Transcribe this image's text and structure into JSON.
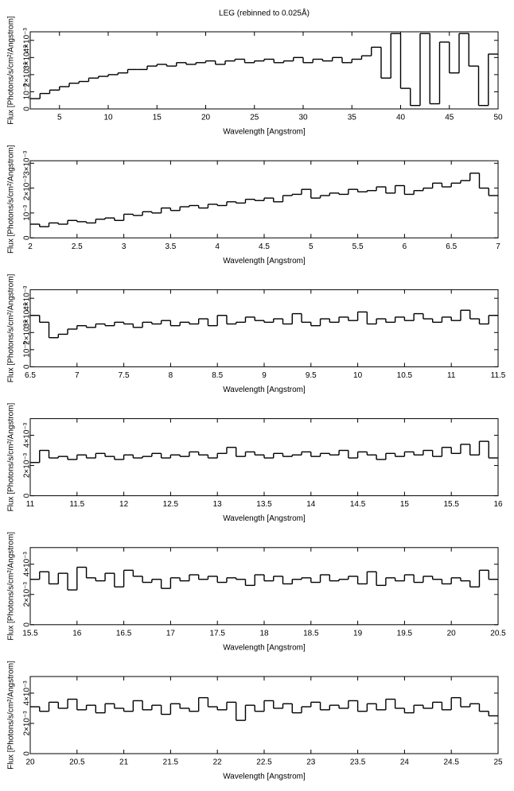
{
  "chart_data": [
    {
      "type": "line",
      "step": true,
      "color": "#000000",
      "title": "LEG (rebinned to 0.025Å)",
      "x_label": "Wavelength [Angstrom]",
      "y_label": "Flux [Photons/s/cm²/Angstrom]",
      "xlim": [
        2,
        50
      ],
      "xticks": [
        5,
        10,
        15,
        20,
        25,
        30,
        35,
        40,
        45,
        50
      ],
      "ylim": [
        0,
        0.0045
      ],
      "yticks": [
        0,
        {
          "value": 0.001,
          "label": "10⁻³"
        },
        {
          "value": 0.002,
          "label": "2×10⁻³"
        },
        {
          "value": 0.003,
          "label": "3×10⁻³"
        },
        {
          "value": 0.004,
          "label": "4×10⁻³"
        }
      ],
      "x": [
        2.5,
        3.5,
        4.5,
        5.5,
        6.5,
        7.5,
        8.5,
        9.5,
        10.5,
        11.5,
        12.5,
        13.5,
        14.5,
        15.5,
        16.5,
        17.5,
        18.5,
        19.5,
        20.5,
        21.5,
        22.5,
        23.5,
        24.5,
        25.5,
        26.5,
        27.5,
        28.5,
        29.5,
        30.5,
        31.5,
        32.5,
        33.5,
        34.5,
        35.5,
        36.5,
        37.5,
        38.5,
        39.5,
        40.5,
        41.5,
        42.5,
        43.5,
        44.5,
        45.5,
        46.5,
        47.5,
        48.5,
        49.5
      ],
      "values": [
        0.0006,
        0.0009,
        0.0011,
        0.0013,
        0.0015,
        0.0016,
        0.0018,
        0.0019,
        0.002,
        0.0021,
        0.0023,
        0.0023,
        0.0025,
        0.0026,
        0.0025,
        0.0027,
        0.0026,
        0.0027,
        0.0028,
        0.0026,
        0.0028,
        0.0029,
        0.0027,
        0.0028,
        0.0029,
        0.0027,
        0.0028,
        0.003,
        0.0027,
        0.0029,
        0.0028,
        0.003,
        0.0027,
        0.0029,
        0.0031,
        0.0036,
        0.0018,
        0.0044,
        0.0012,
        0.0002,
        0.0044,
        0.0003,
        0.0039,
        0.0021,
        0.0044,
        0.0025,
        0.0002,
        0.0032
      ]
    },
    {
      "type": "line",
      "step": true,
      "color": "#000000",
      "x_label": "Wavelength [Angstrom]",
      "y_label": "Flux [Photons/s/cm²/Angstrom]",
      "xlim": [
        2,
        7
      ],
      "xticks": [
        2,
        2.5,
        3,
        3.5,
        4,
        4.5,
        5,
        5.5,
        6,
        6.5,
        7
      ],
      "ylim": [
        0,
        0.0031
      ],
      "yticks": [
        0,
        {
          "value": 0.001,
          "label": "10⁻³"
        },
        {
          "value": 0.002,
          "label": "2×10⁻³"
        },
        {
          "value": 0.003,
          "label": "3×10⁻³"
        }
      ],
      "x": [
        2.05,
        2.15,
        2.25,
        2.35,
        2.45,
        2.55,
        2.65,
        2.75,
        2.85,
        2.95,
        3.05,
        3.15,
        3.25,
        3.35,
        3.45,
        3.55,
        3.65,
        3.75,
        3.85,
        3.95,
        4.05,
        4.15,
        4.25,
        4.35,
        4.45,
        4.55,
        4.65,
        4.75,
        4.85,
        4.95,
        5.05,
        5.15,
        5.25,
        5.35,
        5.45,
        5.55,
        5.65,
        5.75,
        5.85,
        5.95,
        6.05,
        6.15,
        6.25,
        6.35,
        6.45,
        6.55,
        6.65,
        6.75,
        6.85,
        6.95
      ],
      "values": [
        0.00055,
        0.00045,
        0.0006,
        0.00055,
        0.0007,
        0.00065,
        0.0006,
        0.00075,
        0.0008,
        0.0007,
        0.00095,
        0.0009,
        0.00105,
        0.001,
        0.0012,
        0.0011,
        0.00125,
        0.0013,
        0.0012,
        0.00135,
        0.0013,
        0.00145,
        0.0014,
        0.00155,
        0.0015,
        0.0016,
        0.00145,
        0.0017,
        0.00175,
        0.00195,
        0.0016,
        0.0017,
        0.0018,
        0.00175,
        0.00195,
        0.00185,
        0.0019,
        0.00205,
        0.0018,
        0.0021,
        0.00175,
        0.0019,
        0.002,
        0.0022,
        0.00205,
        0.0022,
        0.0023,
        0.0026,
        0.002,
        0.0017
      ]
    },
    {
      "type": "line",
      "step": true,
      "color": "#000000",
      "x_label": "Wavelength [Angstrom]",
      "y_label": "Flux [Photons/s/cm²/Angstrom]",
      "xlim": [
        6.5,
        11.5
      ],
      "xticks": [
        6.5,
        7,
        7.5,
        8,
        8.5,
        9,
        9.5,
        10,
        10.5,
        11,
        11.5
      ],
      "ylim": [
        0,
        0.0045
      ],
      "yticks": [
        0,
        {
          "value": 0.001,
          "label": "10⁻³"
        },
        {
          "value": 0.002,
          "label": "2×10⁻³"
        },
        {
          "value": 0.003,
          "label": "3×10⁻³"
        },
        {
          "value": 0.004,
          "label": "4×10⁻³"
        }
      ],
      "x": [
        6.55,
        6.65,
        6.75,
        6.85,
        6.95,
        7.05,
        7.15,
        7.25,
        7.35,
        7.45,
        7.55,
        7.65,
        7.75,
        7.85,
        7.95,
        8.05,
        8.15,
        8.25,
        8.35,
        8.45,
        8.55,
        8.65,
        8.75,
        8.85,
        8.95,
        9.05,
        9.15,
        9.25,
        9.35,
        9.45,
        9.55,
        9.65,
        9.75,
        9.85,
        9.95,
        10.05,
        10.15,
        10.25,
        10.35,
        10.45,
        10.55,
        10.65,
        10.75,
        10.85,
        10.95,
        11.05,
        11.15,
        11.25,
        11.35,
        11.45
      ],
      "values": [
        0.003,
        0.0026,
        0.0017,
        0.0019,
        0.0022,
        0.0024,
        0.0023,
        0.0025,
        0.0024,
        0.0026,
        0.0025,
        0.0023,
        0.0026,
        0.0025,
        0.0027,
        0.0024,
        0.0026,
        0.0025,
        0.0028,
        0.0024,
        0.003,
        0.0025,
        0.0026,
        0.0029,
        0.0027,
        0.0026,
        0.0028,
        0.0025,
        0.0031,
        0.0026,
        0.0024,
        0.0028,
        0.0026,
        0.0029,
        0.0027,
        0.0032,
        0.0025,
        0.0028,
        0.0026,
        0.0029,
        0.0027,
        0.0031,
        0.0028,
        0.0026,
        0.0029,
        0.0027,
        0.0033,
        0.0028,
        0.0025,
        0.003
      ]
    },
    {
      "type": "line",
      "step": true,
      "color": "#000000",
      "x_label": "Wavelength [Angstrom]",
      "y_label": "Flux [Photons/s/cm²/Angstrom]",
      "xlim": [
        11,
        16
      ],
      "xticks": [
        11,
        11.5,
        12,
        12.5,
        13,
        13.5,
        14,
        14.5,
        15,
        15.5,
        16
      ],
      "ylim": [
        0,
        0.0051
      ],
      "yticks": [
        0,
        {
          "value": 0.002,
          "label": "2×10⁻³"
        },
        {
          "value": 0.004,
          "label": "4×10⁻³"
        }
      ],
      "x": [
        11.05,
        11.15,
        11.25,
        11.35,
        11.45,
        11.55,
        11.65,
        11.75,
        11.85,
        11.95,
        12.05,
        12.15,
        12.25,
        12.35,
        12.45,
        12.55,
        12.65,
        12.75,
        12.85,
        12.95,
        13.05,
        13.15,
        13.25,
        13.35,
        13.45,
        13.55,
        13.65,
        13.75,
        13.85,
        13.95,
        14.05,
        14.15,
        14.25,
        14.35,
        14.45,
        14.55,
        14.65,
        14.75,
        14.85,
        14.95,
        15.05,
        15.15,
        15.25,
        15.35,
        15.45,
        15.55,
        15.65,
        15.75,
        15.85,
        15.95
      ],
      "values": [
        0.0022,
        0.003,
        0.0025,
        0.0026,
        0.0024,
        0.0027,
        0.0025,
        0.0028,
        0.0026,
        0.0024,
        0.0027,
        0.0025,
        0.0026,
        0.0028,
        0.0025,
        0.0027,
        0.0026,
        0.0029,
        0.0027,
        0.0025,
        0.0028,
        0.0032,
        0.0026,
        0.0029,
        0.0027,
        0.0025,
        0.0028,
        0.0026,
        0.0027,
        0.0029,
        0.0026,
        0.0028,
        0.0027,
        0.003,
        0.0025,
        0.0029,
        0.0027,
        0.0024,
        0.0028,
        0.0026,
        0.0029,
        0.0027,
        0.003,
        0.0026,
        0.0032,
        0.0028,
        0.0034,
        0.0027,
        0.0036,
        0.0025
      ]
    },
    {
      "type": "line",
      "step": true,
      "color": "#000000",
      "x_label": "Wavelength [Angstrom]",
      "y_label": "Flux [Photons/s/cm²/Angstrom]",
      "xlim": [
        15.5,
        20.5
      ],
      "xticks": [
        15.5,
        16,
        16.5,
        17,
        17.5,
        18,
        18.5,
        19,
        19.5,
        20,
        20.5
      ],
      "ylim": [
        0,
        0.0051
      ],
      "yticks": [
        0,
        {
          "value": 0.002,
          "label": "2×10⁻³"
        },
        {
          "value": 0.004,
          "label": "4×10⁻³"
        }
      ],
      "x": [
        15.55,
        15.65,
        15.75,
        15.85,
        15.95,
        16.05,
        16.15,
        16.25,
        16.35,
        16.45,
        16.55,
        16.65,
        16.75,
        16.85,
        16.95,
        17.05,
        17.15,
        17.25,
        17.35,
        17.45,
        17.55,
        17.65,
        17.75,
        17.85,
        17.95,
        18.05,
        18.15,
        18.25,
        18.35,
        18.45,
        18.55,
        18.65,
        18.75,
        18.85,
        18.95,
        19.05,
        19.15,
        19.25,
        19.35,
        19.45,
        19.55,
        19.65,
        19.75,
        19.85,
        19.95,
        20.05,
        20.15,
        20.25,
        20.35,
        20.45
      ],
      "values": [
        0.003,
        0.0035,
        0.0027,
        0.0034,
        0.0023,
        0.0038,
        0.0031,
        0.0029,
        0.0034,
        0.0025,
        0.0036,
        0.0032,
        0.0028,
        0.003,
        0.0024,
        0.0031,
        0.0029,
        0.0033,
        0.003,
        0.0032,
        0.0028,
        0.0031,
        0.003,
        0.0026,
        0.0033,
        0.0029,
        0.0032,
        0.0027,
        0.003,
        0.0031,
        0.0028,
        0.0033,
        0.0029,
        0.003,
        0.0032,
        0.0027,
        0.0035,
        0.0026,
        0.0031,
        0.0029,
        0.0033,
        0.0028,
        0.0032,
        0.003,
        0.0027,
        0.0031,
        0.0029,
        0.0025,
        0.0036,
        0.003
      ]
    },
    {
      "type": "line",
      "step": true,
      "color": "#000000",
      "x_label": "Wavelength [Angstrom]",
      "y_label": "Flux [Photons/s/cm²/Angstrom]",
      "xlim": [
        20,
        25
      ],
      "xticks": [
        20,
        20.5,
        21,
        21.5,
        22,
        22.5,
        23,
        23.5,
        24,
        24.5,
        25
      ],
      "ylim": [
        0,
        0.0051
      ],
      "yticks": [
        0,
        {
          "value": 0.002,
          "label": "2×10⁻³"
        },
        {
          "value": 0.004,
          "label": "4×10⁻³"
        }
      ],
      "x": [
        20.05,
        20.15,
        20.25,
        20.35,
        20.45,
        20.55,
        20.65,
        20.75,
        20.85,
        20.95,
        21.05,
        21.15,
        21.25,
        21.35,
        21.45,
        21.55,
        21.65,
        21.75,
        21.85,
        21.95,
        22.05,
        22.15,
        22.25,
        22.35,
        22.45,
        22.55,
        22.65,
        22.75,
        22.85,
        22.95,
        23.05,
        23.15,
        23.25,
        23.35,
        23.45,
        23.55,
        23.65,
        23.75,
        23.85,
        23.95,
        24.05,
        24.15,
        24.25,
        24.35,
        24.45,
        24.55,
        24.65,
        24.75,
        24.85,
        24.95
      ],
      "values": [
        0.0031,
        0.0028,
        0.0034,
        0.003,
        0.0036,
        0.0029,
        0.0032,
        0.0027,
        0.0033,
        0.003,
        0.0028,
        0.0035,
        0.0029,
        0.0032,
        0.0026,
        0.0033,
        0.003,
        0.0028,
        0.0037,
        0.0031,
        0.0029,
        0.0034,
        0.0022,
        0.0032,
        0.0028,
        0.0035,
        0.003,
        0.0033,
        0.0027,
        0.0031,
        0.0034,
        0.0029,
        0.0032,
        0.003,
        0.0035,
        0.0028,
        0.0033,
        0.0029,
        0.0036,
        0.003,
        0.0027,
        0.0032,
        0.003,
        0.0034,
        0.0029,
        0.0037,
        0.0031,
        0.0033,
        0.0028,
        0.0025
      ]
    }
  ]
}
